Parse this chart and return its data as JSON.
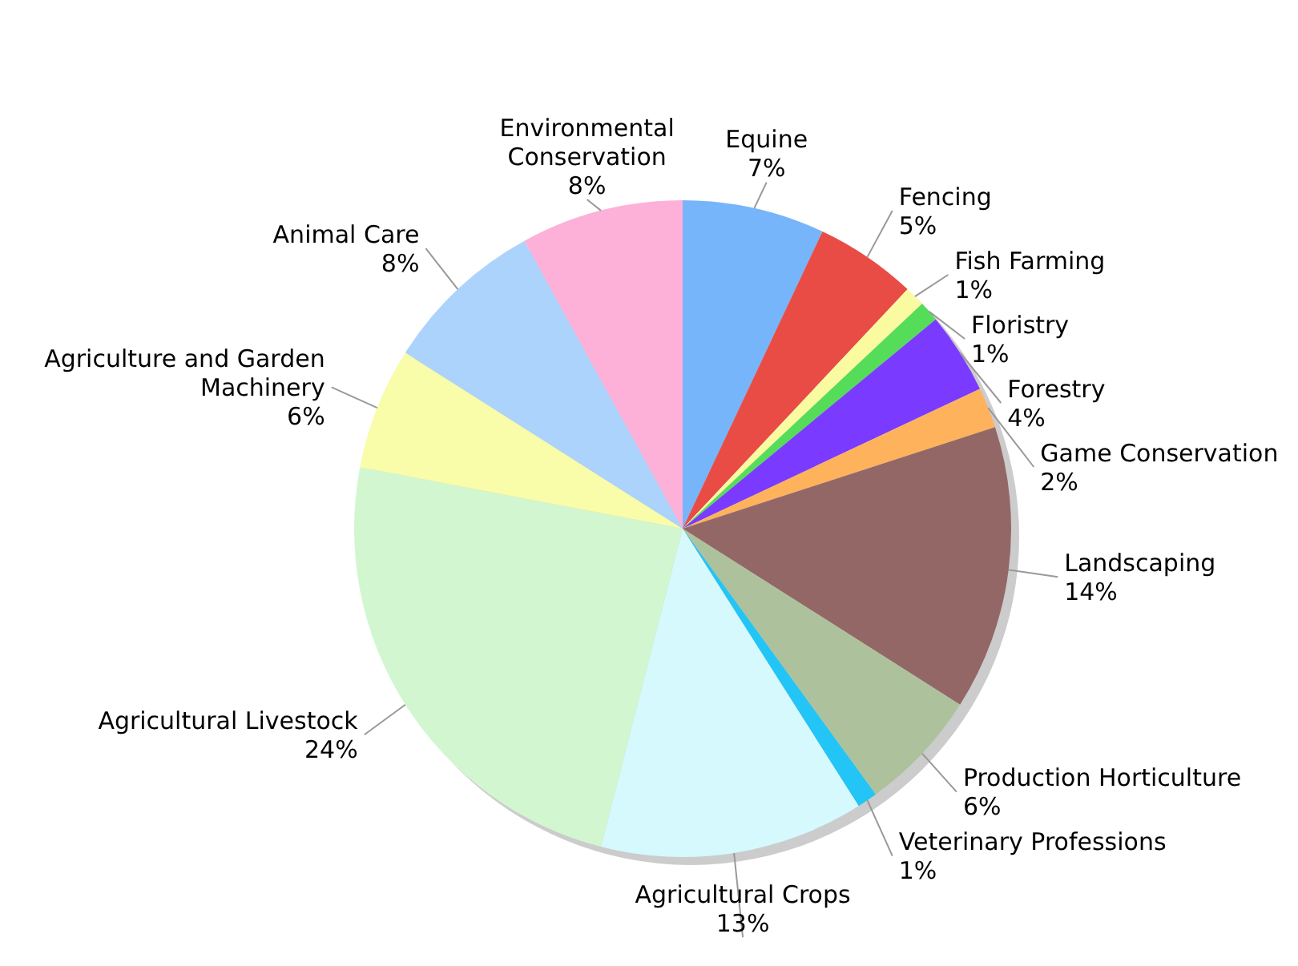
{
  "chart_data": {
    "type": "pie",
    "categories": [
      "Equine",
      "Fencing",
      "Fish Farming",
      "Floristry",
      "Forestry",
      "Game Conservation",
      "Landscaping",
      "Production Horticulture",
      "Veterinary Professions",
      "Agricultural Crops",
      "Agricultural Livestock",
      "Agriculture and Garden Machinery",
      "Animal Care",
      "Environmental Conservation"
    ],
    "values": [
      7,
      5,
      1,
      1,
      4,
      2,
      14,
      6,
      1,
      13,
      24,
      6,
      8,
      8
    ],
    "value_labels": [
      "7%",
      "5%",
      "1%",
      "1%",
      "4%",
      "2%",
      "14%",
      "6%",
      "1%",
      "13%",
      "24%",
      "6%",
      "8%",
      "8%"
    ],
    "colors": [
      "#77b5fb",
      "#e84c45",
      "#fafaa0",
      "#55dd5a",
      "#7b3aff",
      "#ffb25c",
      "#946767",
      "#adc29c",
      "#22c5f5",
      "#d5f9fc",
      "#d2f7d0",
      "#f9fca8",
      "#acd3fc",
      "#fdb0d8"
    ]
  }
}
